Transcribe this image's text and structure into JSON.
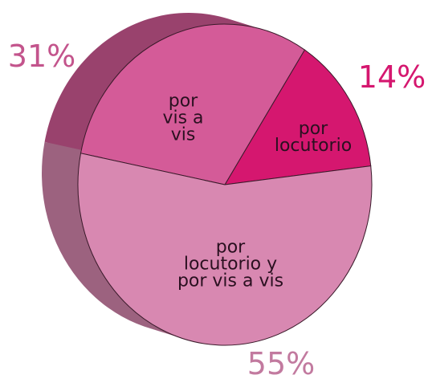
{
  "chart_data": {
    "type": "pie",
    "categories": [
      "por\nlocutorio",
      "por\nvis a\nvis",
      "por\nlocutorio y\npor vis a vis"
    ],
    "values": [
      14,
      31,
      55
    ],
    "value_labels": [
      "14%",
      "31%",
      "55%"
    ],
    "colors": [
      "#d5176f",
      "#d45b98",
      "#d888b1"
    ]
  }
}
